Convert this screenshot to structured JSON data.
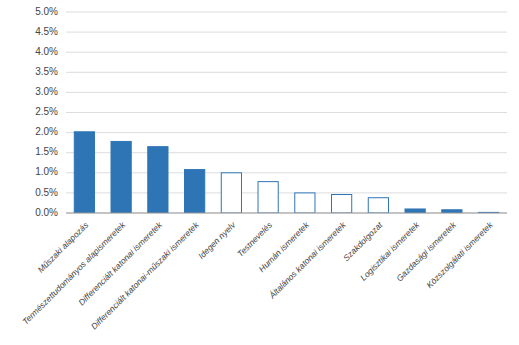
{
  "chart_data": {
    "type": "bar",
    "categories": [
      "Műszaki alapozás",
      "Természettudományos alapismeretek",
      "Differenciált katonai ismeretek",
      "Differenciált katonai-műszaki ismeretek",
      "Idegen nyelv",
      "Testnevelés",
      "Humán ismeretek",
      "Általános katonai ismeretek",
      "Szakdolgozat",
      "Logisztikai ismeretek",
      "Gazdasági ismeretek",
      "Közszolgálati ismeretek"
    ],
    "values": [
      0.0202,
      0.0178,
      0.0165,
      0.0108,
      0.01,
      0.0078,
      0.005,
      0.0046,
      0.0038,
      0.001,
      0.0008,
      0.00015
    ],
    "color": "#2e75b6",
    "colors": [
      "#2e75b6",
      "#2e75b6",
      "#2e75b6",
      "#2e75b6",
      "white",
      "white",
      "white",
      "white",
      "white",
      "#2e75b6",
      "#2e75b6",
      "#2e75b6"
    ],
    "ylim": [
      0,
      0.05
    ],
    "yticks": [
      {
        "value": 0.0,
        "label": "0.0%"
      },
      {
        "value": 0.005,
        "label": "0.5%"
      },
      {
        "value": 0.01,
        "label": "1.0%"
      },
      {
        "value": 0.015,
        "label": "1.5%"
      },
      {
        "value": 0.02,
        "label": "2.0%"
      },
      {
        "value": 0.025,
        "label": "2.5%"
      },
      {
        "value": 0.03,
        "label": "3.0%"
      },
      {
        "value": 0.035,
        "label": "3.5%"
      },
      {
        "value": 0.04,
        "label": "4.0%"
      },
      {
        "value": 0.045,
        "label": "4.5%"
      },
      {
        "value": 0.05,
        "label": "5.0%"
      }
    ],
    "grid": true
  }
}
